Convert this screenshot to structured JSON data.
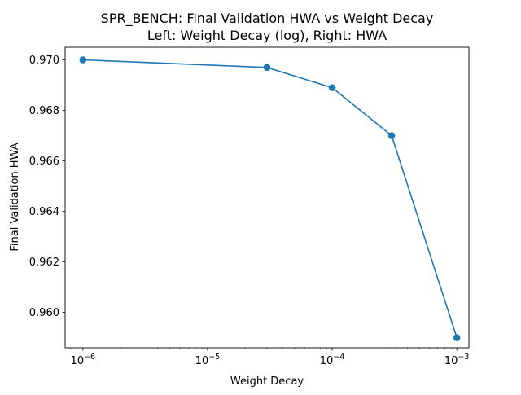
{
  "chart_data": {
    "type": "line",
    "title": "SPR_BENCH: Final Validation HWA vs Weight Decay",
    "subtitle": "Left: Weight Decay (log), Right: HWA",
    "xlabel": "Weight Decay",
    "ylabel": "Final Validation HWA",
    "x_scale": "log",
    "xlim": [
      7.2e-07,
      0.00125
    ],
    "ylim": [
      0.9586,
      0.9705
    ],
    "x_ticks": [
      {
        "value": 1e-06,
        "base": "10",
        "exp": "−6"
      },
      {
        "value": 1e-05,
        "base": "10",
        "exp": "−5"
      },
      {
        "value": 0.0001,
        "base": "10",
        "exp": "−4"
      },
      {
        "value": 0.001,
        "base": "10",
        "exp": "−3"
      }
    ],
    "y_ticks": [
      {
        "value": 0.96,
        "label": "0.960"
      },
      {
        "value": 0.962,
        "label": "0.962"
      },
      {
        "value": 0.964,
        "label": "0.964"
      },
      {
        "value": 0.966,
        "label": "0.966"
      },
      {
        "value": 0.968,
        "label": "0.968"
      },
      {
        "value": 0.97,
        "label": "0.970"
      }
    ],
    "grid": false,
    "legend": "none",
    "series": [
      {
        "color": "#1f77b4",
        "x": [
          1e-06,
          3e-05,
          0.0001,
          0.0003,
          0.001
        ],
        "values": [
          0.97,
          0.9697,
          0.9689,
          0.967,
          0.959
        ]
      }
    ]
  }
}
